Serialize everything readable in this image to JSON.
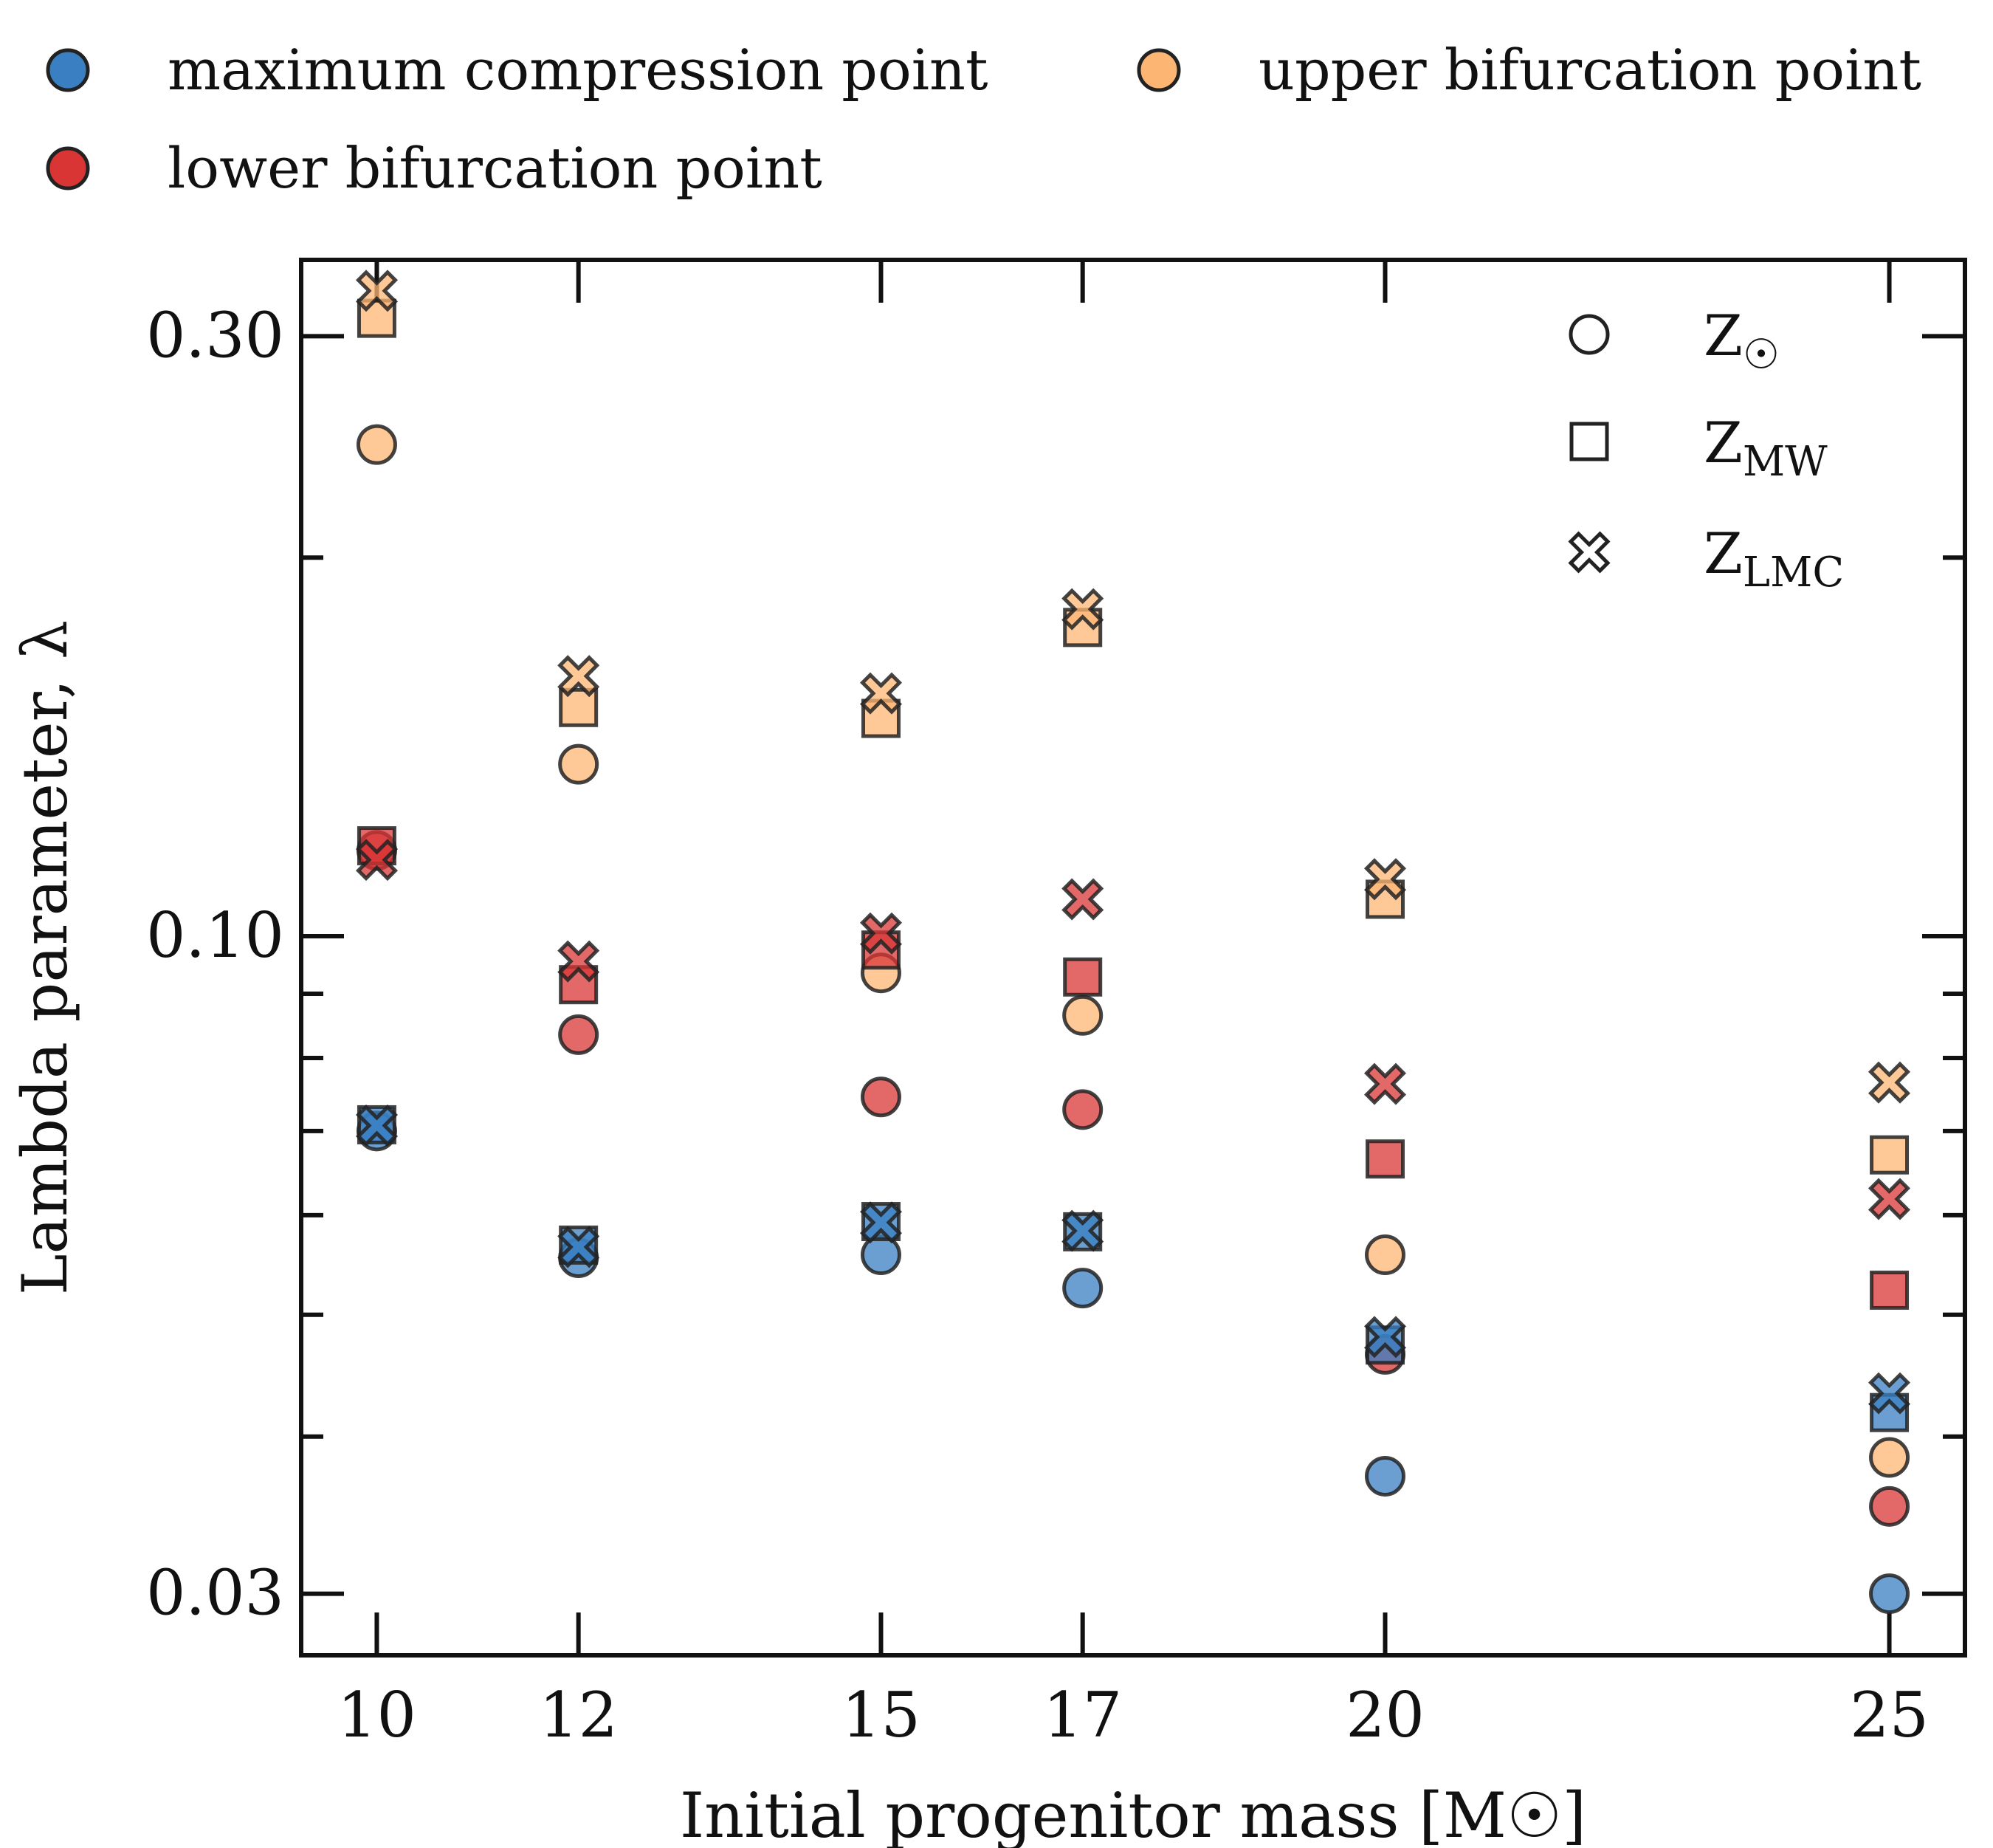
{
  "chart_data": {
    "type": "scatter",
    "title": "",
    "xlabel": "Initial progenitor mass [M☉]",
    "ylabel": "Lambda parameter, λ",
    "yscale": "log",
    "xlim": [
      9.25,
      25.75
    ],
    "ylim": [
      0.0268,
      0.345
    ],
    "x_ticks": [
      10,
      12,
      15,
      17,
      20,
      25
    ],
    "x_tick_labels": [
      "10",
      "12",
      "15",
      "17",
      "20",
      "25"
    ],
    "y_ticks": [
      0.03,
      0.1,
      0.3
    ],
    "y_tick_labels": [
      "0.03",
      "0.10",
      "0.30"
    ],
    "y_minor_ticks": [
      0.04,
      0.05,
      0.06,
      0.07,
      0.08,
      0.09,
      0.2
    ],
    "color_legend": {
      "placement": "above-plot",
      "entries": [
        {
          "key": "max",
          "label": "maximum compression point",
          "color": "#3a7fc1"
        },
        {
          "key": "upper",
          "label": "upper bifurcation point",
          "color": "#fdb574"
        },
        {
          "key": "lower",
          "label": "lower bifurcation point",
          "color": "#d93535"
        }
      ]
    },
    "marker_legend": {
      "placement": "top-right",
      "entries": [
        {
          "key": "sun",
          "marker": "circle",
          "label": "Z",
          "sub": "☉"
        },
        {
          "key": "mw",
          "marker": "square",
          "label": "Z",
          "sub": "MW"
        },
        {
          "key": "lmc",
          "marker": "x",
          "label": "Z",
          "sub": "LMC"
        }
      ]
    },
    "series": [
      {
        "name": "maximum compression point, Z☉",
        "color_key": "max",
        "marker": "circle",
        "x": [
          10,
          12,
          15,
          17,
          20,
          25
        ],
        "y": [
          0.07,
          0.0555,
          0.0558,
          0.0525,
          0.0372,
          0.03
        ]
      },
      {
        "name": "maximum compression point, ZMW",
        "color_key": "max",
        "marker": "square",
        "x": [
          10,
          12,
          15,
          17,
          20,
          25
        ],
        "y": [
          0.0708,
          0.0568,
          0.0593,
          0.0582,
          0.0473,
          0.0418
        ]
      },
      {
        "name": "maximum compression point, ZLMC",
        "color_key": "max",
        "marker": "x",
        "x": [
          10,
          12,
          15,
          17,
          20,
          25
        ],
        "y": [
          0.0707,
          0.0566,
          0.0592,
          0.0583,
          0.048,
          0.0433
        ]
      },
      {
        "name": "upper bifurcation point, Z☉",
        "color_key": "upper",
        "marker": "circle",
        "x": [
          10,
          12,
          15,
          17,
          20,
          25
        ],
        "y": [
          0.246,
          0.137,
          0.0935,
          0.0865,
          0.0558,
          0.0385
        ]
      },
      {
        "name": "upper bifurcation point, ZMW",
        "color_key": "upper",
        "marker": "square",
        "x": [
          10,
          12,
          15,
          17,
          20,
          25
        ],
        "y": [
          0.31,
          0.152,
          0.149,
          0.176,
          0.107,
          0.067
        ]
      },
      {
        "name": "upper bifurcation point, ZLMC",
        "color_key": "upper",
        "marker": "x",
        "x": [
          10,
          12,
          15,
          17,
          20,
          25
        ],
        "y": [
          0.326,
          0.161,
          0.156,
          0.182,
          0.111,
          0.0765
        ]
      },
      {
        "name": "lower bifurcation point, Z☉",
        "color_key": "lower",
        "marker": "circle",
        "x": [
          10,
          12,
          15,
          17,
          20,
          25
        ],
        "y": [
          0.117,
          0.0835,
          0.0745,
          0.0728,
          0.0465,
          0.0352
        ]
      },
      {
        "name": "lower bifurcation point, ZMW",
        "color_key": "lower",
        "marker": "square",
        "x": [
          10,
          12,
          15,
          17,
          20,
          25
        ],
        "y": [
          0.118,
          0.0915,
          0.0975,
          0.0928,
          0.0665,
          0.0523
        ]
      },
      {
        "name": "lower bifurcation point, ZLMC",
        "color_key": "lower",
        "marker": "x",
        "x": [
          10,
          12,
          15,
          17,
          20,
          25
        ],
        "y": [
          0.115,
          0.0955,
          0.1005,
          0.107,
          0.0763,
          0.0618
        ]
      }
    ]
  }
}
